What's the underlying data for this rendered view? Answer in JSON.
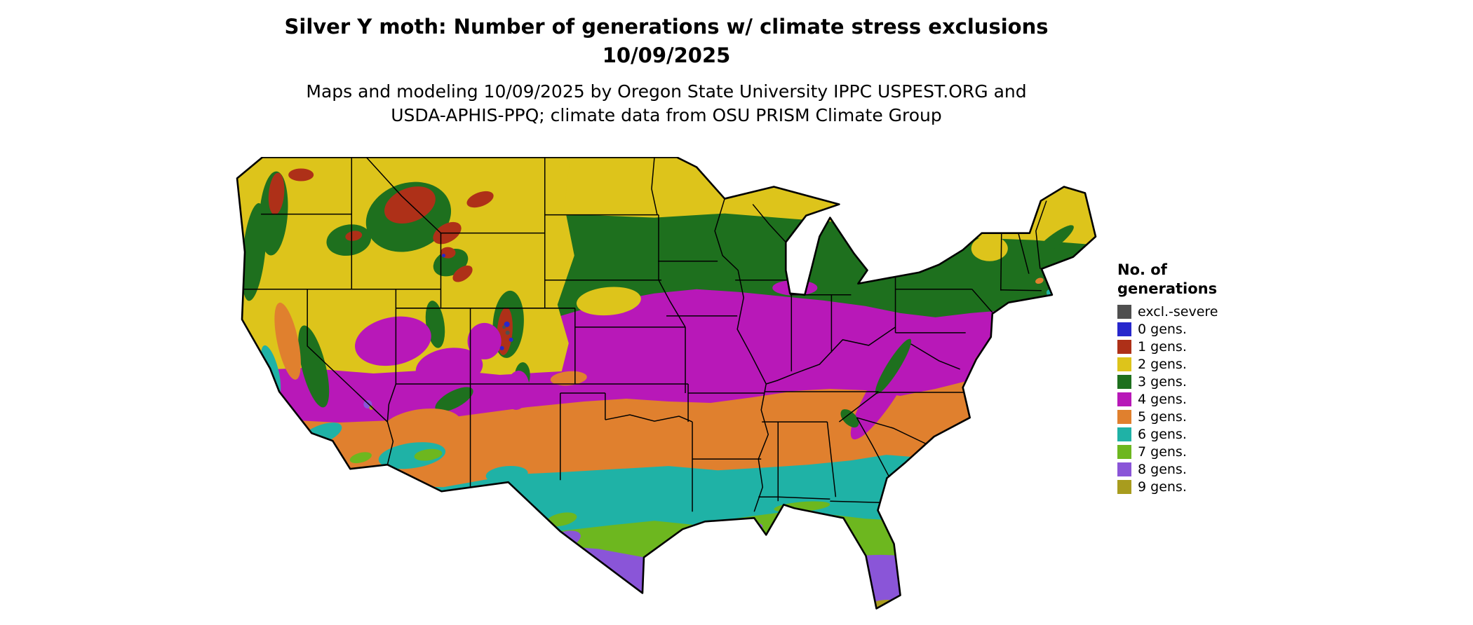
{
  "title": {
    "line1": "Silver Y moth: Number of generations w/ climate stress exclusions",
    "line2": "10/09/2025"
  },
  "subtitle": {
    "line1": "Maps and modeling 10/09/2025 by Oregon State University IPPC USPEST.ORG and",
    "line2": "USDA-APHIS-PPQ; climate data from OSU PRISM Climate Group"
  },
  "map": {
    "region": "Continental United States",
    "background_color": "#ffffff",
    "boundary_color": "#000000"
  },
  "legend": {
    "title_line1": "No. of",
    "title_line2": "generations",
    "items": [
      {
        "key": "excl",
        "label": "excl.-severe",
        "color": "#4f4f4f"
      },
      {
        "key": "g0",
        "label": "0 gens.",
        "color": "#2727cc"
      },
      {
        "key": "g1",
        "label": "1 gens.",
        "color": "#ae3018"
      },
      {
        "key": "g2",
        "label": "2 gens.",
        "color": "#ddc41b"
      },
      {
        "key": "g3",
        "label": "3 gens.",
        "color": "#1e701e"
      },
      {
        "key": "g4",
        "label": "4 gens.",
        "color": "#b818b8"
      },
      {
        "key": "g5",
        "label": "5 gens.",
        "color": "#e0802e"
      },
      {
        "key": "g6",
        "label": "6 gens.",
        "color": "#1fb2a6"
      },
      {
        "key": "g7",
        "label": "7 gens.",
        "color": "#6db71f"
      },
      {
        "key": "g8",
        "label": "8 gens.",
        "color": "#8a55d8"
      },
      {
        "key": "g9",
        "label": "9 gens.",
        "color": "#a89c1e"
      }
    ]
  }
}
